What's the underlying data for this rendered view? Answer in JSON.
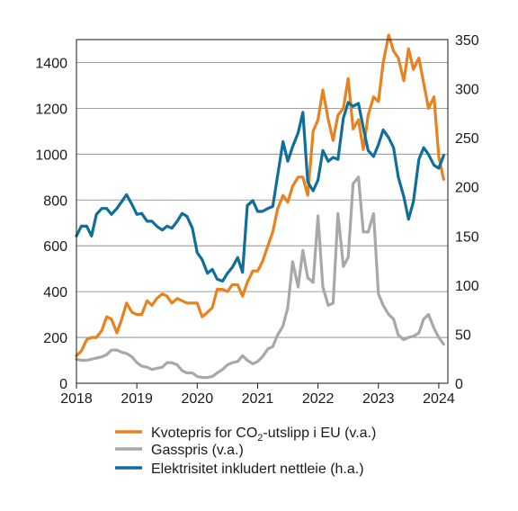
{
  "chart_data": {
    "type": "line",
    "xlim": [
      2018,
      2024.15
    ],
    "x_ticks": [
      "2018",
      "2019",
      "2020",
      "2021",
      "2022",
      "2023",
      "2024"
    ],
    "y_left": {
      "ylim": [
        0,
        1500
      ],
      "ticks": [
        "0",
        "200",
        "400",
        "600",
        "800",
        "1000",
        "1200",
        "1400"
      ]
    },
    "y_right": {
      "ylim": [
        0,
        350
      ],
      "ticks": [
        "0",
        "50",
        "100",
        "150",
        "200",
        "250",
        "300",
        "350"
      ]
    },
    "grid": true,
    "legend_position": "bottom",
    "series": [
      {
        "id": "co2",
        "name_parts": [
          "Kvotepris for CO",
          "2",
          "-utslipp i EU (v.a.)"
        ],
        "axis": "left",
        "color": "#e8821e",
        "x": [
          2018.0,
          2018.08,
          2018.17,
          2018.25,
          2018.33,
          2018.42,
          2018.5,
          2018.58,
          2018.67,
          2018.75,
          2018.83,
          2018.92,
          2019.0,
          2019.08,
          2019.17,
          2019.25,
          2019.33,
          2019.42,
          2019.5,
          2019.58,
          2019.67,
          2019.75,
          2019.83,
          2019.92,
          2020.0,
          2020.08,
          2020.17,
          2020.25,
          2020.33,
          2020.42,
          2020.5,
          2020.58,
          2020.67,
          2020.75,
          2020.83,
          2020.92,
          2021.0,
          2021.08,
          2021.17,
          2021.25,
          2021.33,
          2021.42,
          2021.5,
          2021.58,
          2021.67,
          2021.75,
          2021.83,
          2021.92,
          2022.0,
          2022.08,
          2022.17,
          2022.25,
          2022.33,
          2022.42,
          2022.5,
          2022.58,
          2022.67,
          2022.75,
          2022.83,
          2022.92,
          2023.0,
          2023.08,
          2023.17,
          2023.25,
          2023.33,
          2023.42,
          2023.5,
          2023.58,
          2023.67,
          2023.75,
          2023.83,
          2023.92,
          2024.0,
          2024.08
        ],
        "values": [
          120,
          140,
          190,
          200,
          200,
          230,
          290,
          280,
          220,
          280,
          350,
          310,
          300,
          300,
          360,
          340,
          370,
          390,
          380,
          350,
          370,
          360,
          350,
          350,
          350,
          290,
          310,
          330,
          410,
          410,
          400,
          430,
          430,
          380,
          440,
          490,
          490,
          530,
          600,
          660,
          760,
          820,
          790,
          860,
          900,
          900,
          820,
          1100,
          1150,
          1280,
          1150,
          1060,
          1170,
          1200,
          1330,
          1110,
          1150,
          1020,
          1170,
          1250,
          1230,
          1400,
          1520,
          1450,
          1420,
          1320,
          1460,
          1370,
          1420,
          1310,
          1200,
          1250,
          990,
          890
        ]
      },
      {
        "id": "gas",
        "name": "Gasspris (v.a.)",
        "axis": "left",
        "color": "#a8a8a8",
        "x": [
          2018.0,
          2018.08,
          2018.17,
          2018.25,
          2018.33,
          2018.42,
          2018.5,
          2018.58,
          2018.67,
          2018.75,
          2018.83,
          2018.92,
          2019.0,
          2019.08,
          2019.17,
          2019.25,
          2019.33,
          2019.42,
          2019.5,
          2019.58,
          2019.67,
          2019.75,
          2019.83,
          2019.92,
          2020.0,
          2020.08,
          2020.17,
          2020.25,
          2020.33,
          2020.42,
          2020.5,
          2020.58,
          2020.67,
          2020.75,
          2020.83,
          2020.92,
          2021.0,
          2021.08,
          2021.17,
          2021.25,
          2021.33,
          2021.42,
          2021.5,
          2021.58,
          2021.67,
          2021.75,
          2021.83,
          2021.92,
          2022.0,
          2022.08,
          2022.17,
          2022.25,
          2022.33,
          2022.42,
          2022.5,
          2022.58,
          2022.67,
          2022.75,
          2022.83,
          2022.92,
          2023.0,
          2023.08,
          2023.17,
          2023.25,
          2023.33,
          2023.42,
          2023.5,
          2023.58,
          2023.67,
          2023.75,
          2023.83,
          2023.92,
          2024.0,
          2024.08
        ],
        "values": [
          105,
          100,
          100,
          105,
          110,
          115,
          125,
          145,
          145,
          135,
          130,
          115,
          90,
          75,
          70,
          60,
          65,
          70,
          90,
          90,
          80,
          55,
          45,
          45,
          30,
          25,
          25,
          30,
          45,
          60,
          80,
          90,
          95,
          120,
          100,
          85,
          95,
          115,
          150,
          160,
          210,
          250,
          330,
          530,
          420,
          580,
          460,
          440,
          730,
          420,
          340,
          350,
          740,
          510,
          550,
          870,
          900,
          660,
          660,
          740,
          390,
          340,
          300,
          280,
          210,
          190,
          200,
          205,
          220,
          280,
          300,
          240,
          200,
          170
        ]
      },
      {
        "id": "elec",
        "name": "Elektrisitet inkludert nettleie (h.a.)",
        "axis": "right",
        "color": "#0f6e9a",
        "x": [
          2018.0,
          2018.08,
          2018.17,
          2018.25,
          2018.33,
          2018.42,
          2018.5,
          2018.58,
          2018.67,
          2018.75,
          2018.83,
          2018.92,
          2019.0,
          2019.08,
          2019.17,
          2019.25,
          2019.33,
          2019.42,
          2019.5,
          2019.58,
          2019.67,
          2019.75,
          2019.83,
          2019.92,
          2020.0,
          2020.08,
          2020.17,
          2020.25,
          2020.33,
          2020.42,
          2020.5,
          2020.58,
          2020.67,
          2020.75,
          2020.83,
          2020.92,
          2021.0,
          2021.08,
          2021.17,
          2021.25,
          2021.33,
          2021.42,
          2021.5,
          2021.58,
          2021.67,
          2021.75,
          2021.83,
          2021.92,
          2022.0,
          2022.08,
          2022.17,
          2022.25,
          2022.33,
          2022.42,
          2022.5,
          2022.58,
          2022.67,
          2022.75,
          2022.83,
          2022.92,
          2023.0,
          2023.08,
          2023.17,
          2023.25,
          2023.33,
          2023.42,
          2023.5,
          2023.58,
          2023.67,
          2023.75,
          2023.83,
          2023.92,
          2024.0,
          2024.08
        ],
        "values": [
          150,
          160,
          160,
          150,
          172,
          178,
          178,
          172,
          178,
          185,
          192,
          182,
          172,
          173,
          165,
          165,
          160,
          156,
          160,
          158,
          165,
          173,
          170,
          158,
          133,
          126,
          112,
          116,
          106,
          104,
          112,
          118,
          128,
          113,
          181,
          186,
          175,
          175,
          178,
          180,
          211,
          246,
          226,
          241,
          255,
          276,
          205,
          196,
          207,
          237,
          226,
          230,
          228,
          270,
          286,
          282,
          285,
          260,
          237,
          231,
          243,
          258,
          250,
          240,
          210,
          190,
          167,
          185,
          228,
          240,
          233,
          222,
          219,
          232
        ]
      }
    ]
  }
}
